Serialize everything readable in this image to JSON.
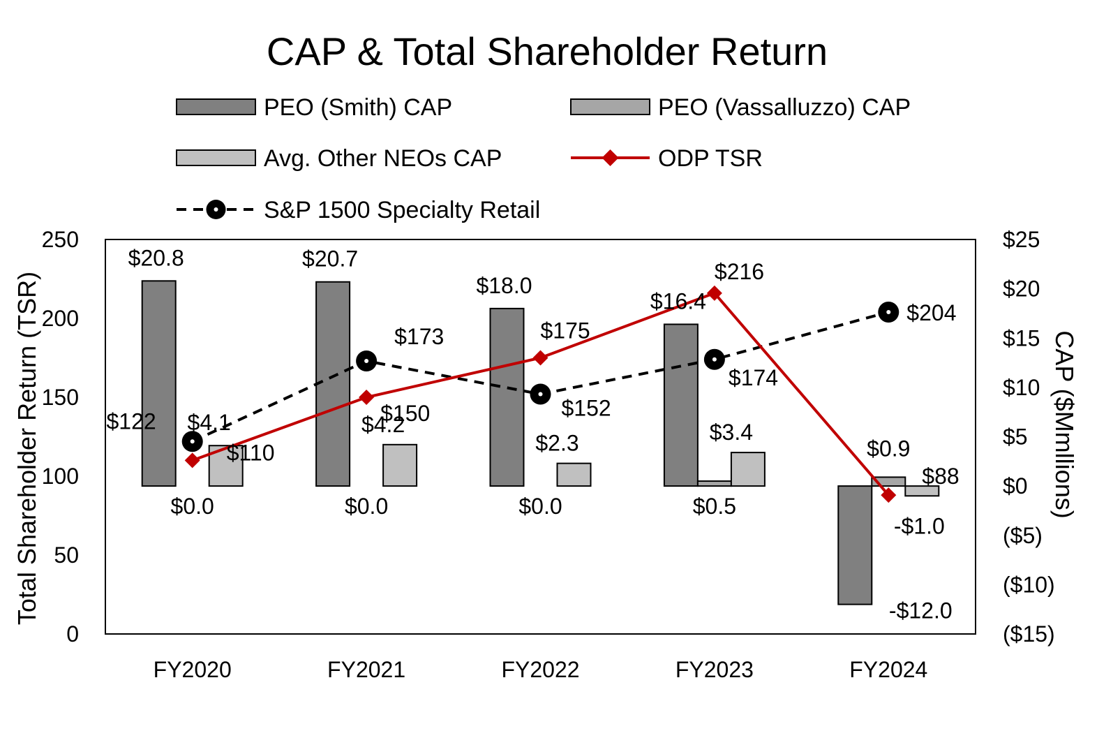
{
  "chart_data": {
    "type": "bar",
    "title": "CAP & Total Shareholder Return",
    "categories": [
      "FY2020",
      "FY2021",
      "FY2022",
      "FY2023",
      "FY2024"
    ],
    "left_axis": {
      "label": "Total Shareholder Return (TSR)",
      "ylim": [
        0,
        250
      ],
      "ticks": [
        0,
        50,
        100,
        150,
        200,
        250
      ],
      "tick_labels": [
        "0",
        "50",
        "100",
        "150",
        "200",
        "250"
      ]
    },
    "right_axis": {
      "label": "CAP ($Mmllions)",
      "ylim": [
        -15,
        25
      ],
      "ticks": [
        25,
        20,
        15,
        10,
        5,
        0,
        -5,
        -10,
        -15
      ],
      "tick_labels": [
        "$25",
        "$20",
        "$15",
        "$10",
        "$5",
        "$0",
        "($5)",
        "($10)",
        "($15)"
      ]
    },
    "bar_series": [
      {
        "name": "PEO (Smith) CAP",
        "color": "#808080",
        "values": [
          20.8,
          20.7,
          18.0,
          16.4,
          -12.0
        ],
        "labels": [
          "$20.8",
          "$20.7",
          "$18.0",
          "$16.4",
          "-$12.0"
        ]
      },
      {
        "name": "PEO (Vassalluzzo) CAP",
        "color": "#a6a6a6",
        "values": [
          0.0,
          0.0,
          0.0,
          0.5,
          0.9
        ],
        "labels": [
          "$0.0",
          "$0.0",
          "$0.0",
          "$0.5",
          "$0.9"
        ]
      },
      {
        "name": "Avg. Other NEOs CAP",
        "color": "#c0c0c0",
        "values": [
          4.1,
          4.2,
          2.3,
          3.4,
          -1.0
        ],
        "labels": [
          "$4.1",
          "$4.2",
          "$2.3",
          "$3.4",
          "-$1.0"
        ]
      }
    ],
    "line_series": [
      {
        "name": "ODP TSR",
        "color": "#c00000",
        "values": [
          110,
          150,
          175,
          216,
          88
        ],
        "labels": [
          "$110",
          "$150",
          "$175",
          "$216",
          "$88"
        ]
      },
      {
        "name": "S&P 1500 Specialty Retail",
        "color": "#000000",
        "values": [
          122,
          173,
          152,
          174,
          204
        ],
        "labels": [
          "$122",
          "$173",
          "$152",
          "$174",
          "$204"
        ]
      }
    ],
    "legend_position": "top",
    "grid": false
  }
}
